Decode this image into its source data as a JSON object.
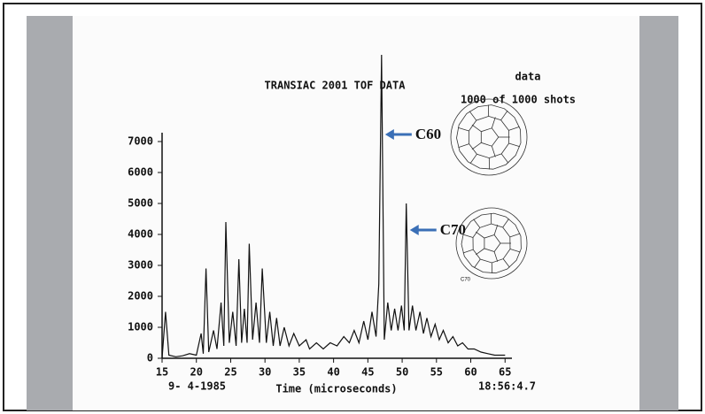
{
  "chart_data": {
    "type": "line",
    "title": "TRANSIAC 2001 TOF DATA",
    "x_label": "Time (microseconds)",
    "date_label": "9- 4-1985",
    "time_label": "18:56:4.7",
    "legend_lines": [
      "data",
      "1000 of  1000 shots"
    ],
    "annotations": [
      {
        "text": "C60",
        "x": 47.0
      },
      {
        "text": "C70",
        "x": 50.6
      }
    ],
    "figure_caption": "C70",
    "color": "#111111",
    "x": [
      15,
      15.5,
      16,
      17,
      18,
      19,
      20,
      20.7,
      21,
      21.4,
      21.8,
      22.5,
      23,
      23.6,
      24,
      24.3,
      24.8,
      25.3,
      25.8,
      26.2,
      26.6,
      27,
      27.4,
      27.7,
      28.2,
      28.7,
      29.2,
      29.6,
      30.2,
      30.7,
      31.2,
      31.7,
      32.2,
      32.8,
      33.5,
      34.2,
      35,
      36,
      36.5,
      37.5,
      38.5,
      39.5,
      40.5,
      41.5,
      42.3,
      43,
      43.7,
      44.4,
      45,
      45.6,
      46.2,
      46.6,
      47.0,
      47.4,
      47.9,
      48.4,
      48.9,
      49.4,
      49.9,
      50.3,
      50.6,
      51.0,
      51.5,
      52.0,
      52.6,
      53.1,
      53.6,
      54.2,
      54.8,
      55.4,
      56,
      56.7,
      57.4,
      58.1,
      58.8,
      59.6,
      60.5,
      61.5,
      62.5,
      63.5,
      65
    ],
    "values": [
      0,
      1500,
      100,
      50,
      80,
      150,
      100,
      800,
      150,
      2900,
      200,
      900,
      300,
      1800,
      400,
      4400,
      500,
      1500,
      400,
      3200,
      500,
      1600,
      500,
      3700,
      600,
      1800,
      500,
      2900,
      500,
      1500,
      400,
      1300,
      400,
      1000,
      400,
      800,
      400,
      600,
      300,
      500,
      300,
      500,
      400,
      700,
      500,
      900,
      500,
      1200,
      600,
      1500,
      700,
      2400,
      9800,
      600,
      1800,
      900,
      1600,
      900,
      1700,
      900,
      5000,
      900,
      1700,
      900,
      1500,
      800,
      1300,
      700,
      1100,
      600,
      900,
      500,
      700,
      400,
      500,
      300,
      300,
      200,
      150,
      100,
      100
    ],
    "xlim": [
      15,
      66
    ],
    "ylim": [
      0,
      10000
    ],
    "xticks": [
      15,
      20,
      25,
      30,
      35,
      40,
      45,
      50,
      55,
      60,
      65
    ],
    "yticks": [
      0,
      1000,
      2000,
      3000,
      4000,
      5000,
      6000,
      7000
    ]
  }
}
